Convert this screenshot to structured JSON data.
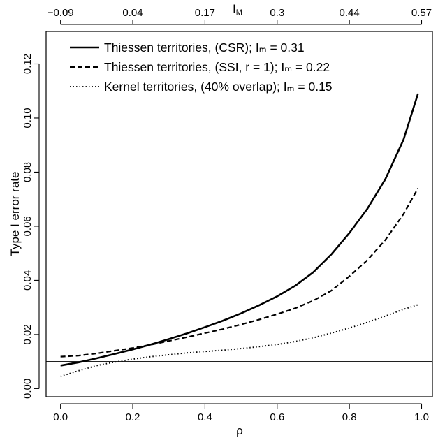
{
  "chart_data": {
    "type": "line",
    "x": [
      0.0,
      0.05,
      0.1,
      0.15,
      0.2,
      0.25,
      0.3,
      0.35,
      0.4,
      0.45,
      0.5,
      0.55,
      0.6,
      0.65,
      0.7,
      0.75,
      0.8,
      0.85,
      0.9,
      0.95,
      0.99
    ],
    "series": [
      {
        "name": "Thiessen territories, (CSR); Iₘ = 0.31",
        "dash": "solid",
        "values": [
          0.0085,
          0.0097,
          0.0112,
          0.0128,
          0.0145,
          0.0163,
          0.0183,
          0.0204,
          0.0227,
          0.0251,
          0.0278,
          0.0308,
          0.0341,
          0.038,
          0.043,
          0.0496,
          0.0575,
          0.0665,
          0.0775,
          0.092,
          0.109
        ]
      },
      {
        "name": "Thiessen territories, (SSI, r = 1); Iₘ = 0.22",
        "dash": "dashed",
        "values": [
          0.0118,
          0.0122,
          0.013,
          0.014,
          0.015,
          0.0162,
          0.0176,
          0.019,
          0.0205,
          0.022,
          0.0237,
          0.0255,
          0.0275,
          0.0297,
          0.0325,
          0.0362,
          0.0415,
          0.0475,
          0.055,
          0.0645,
          0.074
        ]
      },
      {
        "name": "Kernel territories, (40% overlap); Iₘ = 0.15",
        "dash": "dotted",
        "values": [
          0.0045,
          0.0066,
          0.0085,
          0.0098,
          0.0109,
          0.0118,
          0.0125,
          0.0132,
          0.0137,
          0.0142,
          0.0148,
          0.0155,
          0.0163,
          0.0174,
          0.0188,
          0.0205,
          0.0224,
          0.0245,
          0.0268,
          0.0293,
          0.031
        ]
      }
    ],
    "reference_line": {
      "y": 0.01
    },
    "xlabel": "ρ",
    "ylabel": "Type I error rate",
    "xlim": [
      -0.04,
      1.03
    ],
    "ylim": [
      -0.003,
      0.132
    ],
    "xticks": [
      0.0,
      0.2,
      0.4,
      0.6,
      0.8,
      1.0
    ],
    "xtick_labels": [
      "0.0",
      "0.2",
      "0.4",
      "0.6",
      "0.8",
      "1.0"
    ],
    "yticks": [
      0.0,
      0.02,
      0.04,
      0.06,
      0.08,
      0.1,
      0.12
    ],
    "ytick_labels": [
      "0.00",
      "0.02",
      "0.04",
      "0.06",
      "0.08",
      "0.10",
      "0.12"
    ],
    "top_axis": {
      "label": "I",
      "label_sub": "M",
      "tick_labels": [
        "−0.09",
        "0.04",
        "0.17",
        "0.3",
        "0.44",
        "0.57"
      ]
    },
    "legend_position": "top-left",
    "grid": false
  }
}
